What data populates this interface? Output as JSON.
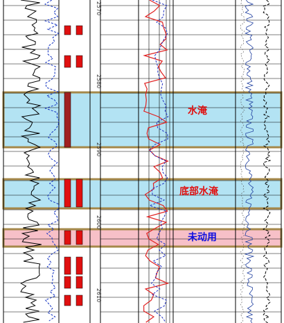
{
  "bands": [
    {
      "label": "水淹"
    },
    {
      "label": "底部水淹"
    },
    {
      "label": "未动用"
    }
  ],
  "depth_labels": [
    "2570",
    "2580",
    "2590",
    "2600",
    "2610"
  ]
}
